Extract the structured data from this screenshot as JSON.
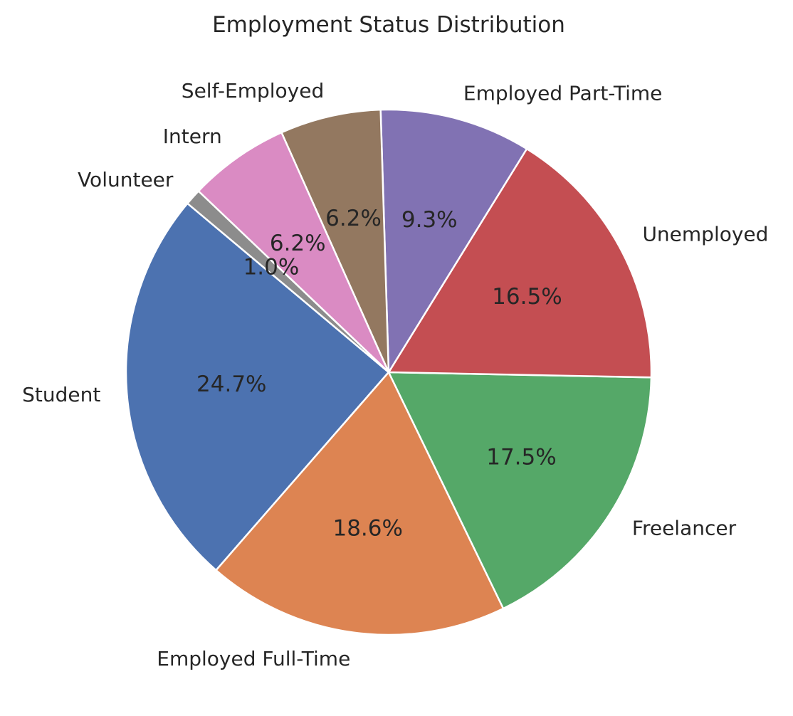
{
  "chart_data": {
    "type": "pie",
    "title": "Employment Status Distribution",
    "categories": [
      "Student",
      "Employed Full-Time",
      "Freelancer",
      "Unemployed",
      "Employed Part-Time",
      "Self-Employed",
      "Intern",
      "Volunteer"
    ],
    "values": [
      24.7,
      18.6,
      17.5,
      16.5,
      9.3,
      6.2,
      6.2,
      1.0
    ],
    "value_labels": [
      "24.7%",
      "18.6%",
      "17.5%",
      "16.5%",
      "9.3%",
      "6.2%",
      "6.2%",
      "1.0%"
    ],
    "colors": [
      "#4c72b0",
      "#dd8452",
      "#55a868",
      "#c44e52",
      "#8172b3",
      "#937860",
      "#da8bc3",
      "#8c8c8c"
    ],
    "start_angle_deg": 140,
    "direction": "counterclockwise",
    "legend": "none"
  }
}
